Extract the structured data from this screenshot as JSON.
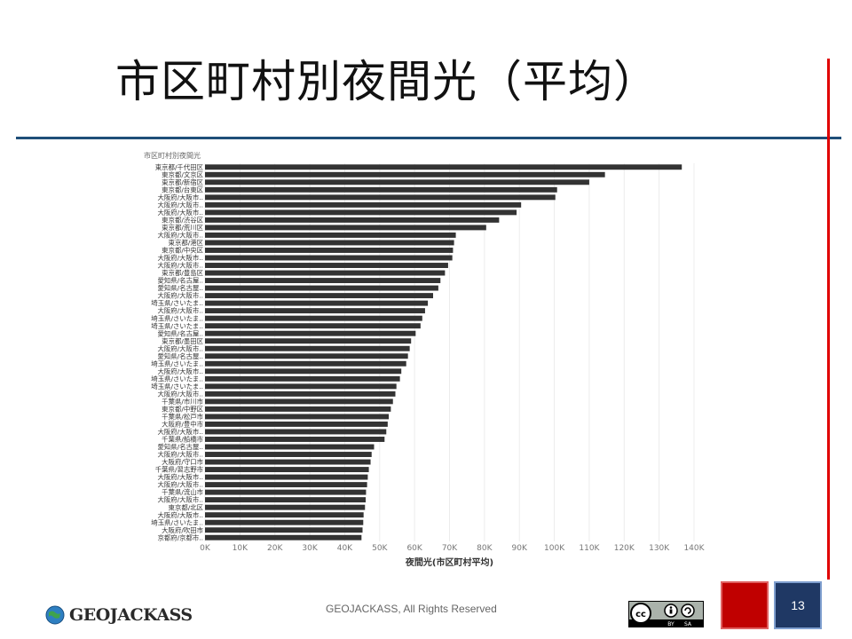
{
  "slide": {
    "title": "市区町村別夜間光（平均）",
    "footer": "GEOJACKASS, All Rights Reserved",
    "logo_text": "GEOJACKASS",
    "page_number": "13",
    "colors": {
      "accent_line": "#1f4e79",
      "red_line": "#e00000",
      "bar": "#333333"
    }
  },
  "chart_data": {
    "type": "bar",
    "orientation": "horizontal",
    "title": "市区町村別夜間光",
    "xlabel": "夜間光(市区町村平均)",
    "xlim": [
      0,
      140000
    ],
    "xticks": [
      0,
      10000,
      20000,
      30000,
      40000,
      50000,
      60000,
      70000,
      80000,
      90000,
      100000,
      110000,
      120000,
      130000,
      140000
    ],
    "xtick_labels": [
      "0K",
      "10K",
      "20K",
      "30K",
      "40K",
      "50K",
      "60K",
      "70K",
      "80K",
      "90K",
      "100K",
      "110K",
      "120K",
      "130K",
      "140K"
    ],
    "grid": true,
    "categories": [
      "東京都/千代田区",
      "東京都/文京区",
      "東京都/新宿区",
      "東京都/台東区",
      "大阪府/大阪市..",
      "大阪府/大阪市..",
      "大阪府/大阪市..",
      "東京都/渋谷区",
      "東京都/荒川区",
      "大阪府/大阪市..",
      "東京都/港区",
      "東京都/中央区",
      "大阪府/大阪市..",
      "大阪府/大阪市..",
      "東京都/豊島区",
      "愛知県/名古屋..",
      "愛知県/名古屋..",
      "大阪府/大阪市..",
      "埼玉県/さいたま..",
      "大阪府/大阪市..",
      "埼玉県/さいたま..",
      "埼玉県/さいたま..",
      "愛知県/名古屋..",
      "東京都/墨田区",
      "大阪府/大阪市..",
      "愛知県/名古屋..",
      "埼玉県/さいたま..",
      "大阪府/大阪市..",
      "埼玉県/さいたま..",
      "埼玉県/さいたま..",
      "大阪府/大阪市..",
      "千葉県/市川市",
      "東京都/中野区",
      "千葉県/松戸市",
      "大阪府/豊中市",
      "大阪府/大阪市..",
      "千葉県/船橋市",
      "愛知県/名古屋..",
      "大阪府/大阪市..",
      "大阪府/守口市",
      "千葉県/習志野市",
      "大阪府/大阪市..",
      "大阪府/大阪市..",
      "千葉県/流山市",
      "大阪府/大阪市..",
      "東京都/北区",
      "大阪府/大阪市..",
      "埼玉県/さいたま..",
      "大阪府/吹田市",
      "京都府/京都市.."
    ],
    "values": [
      136500,
      114500,
      110000,
      100800,
      100300,
      90500,
      89200,
      84200,
      80500,
      71800,
      71300,
      71000,
      70800,
      69600,
      68700,
      67400,
      66800,
      65300,
      63800,
      63000,
      62200,
      61700,
      60300,
      59000,
      58600,
      58100,
      57600,
      56200,
      55800,
      54800,
      54500,
      53800,
      53200,
      52600,
      52300,
      51900,
      51400,
      48400,
      47700,
      47400,
      46900,
      46600,
      46400,
      46100,
      46000,
      45800,
      45400,
      45300,
      45100,
      44800
    ]
  }
}
